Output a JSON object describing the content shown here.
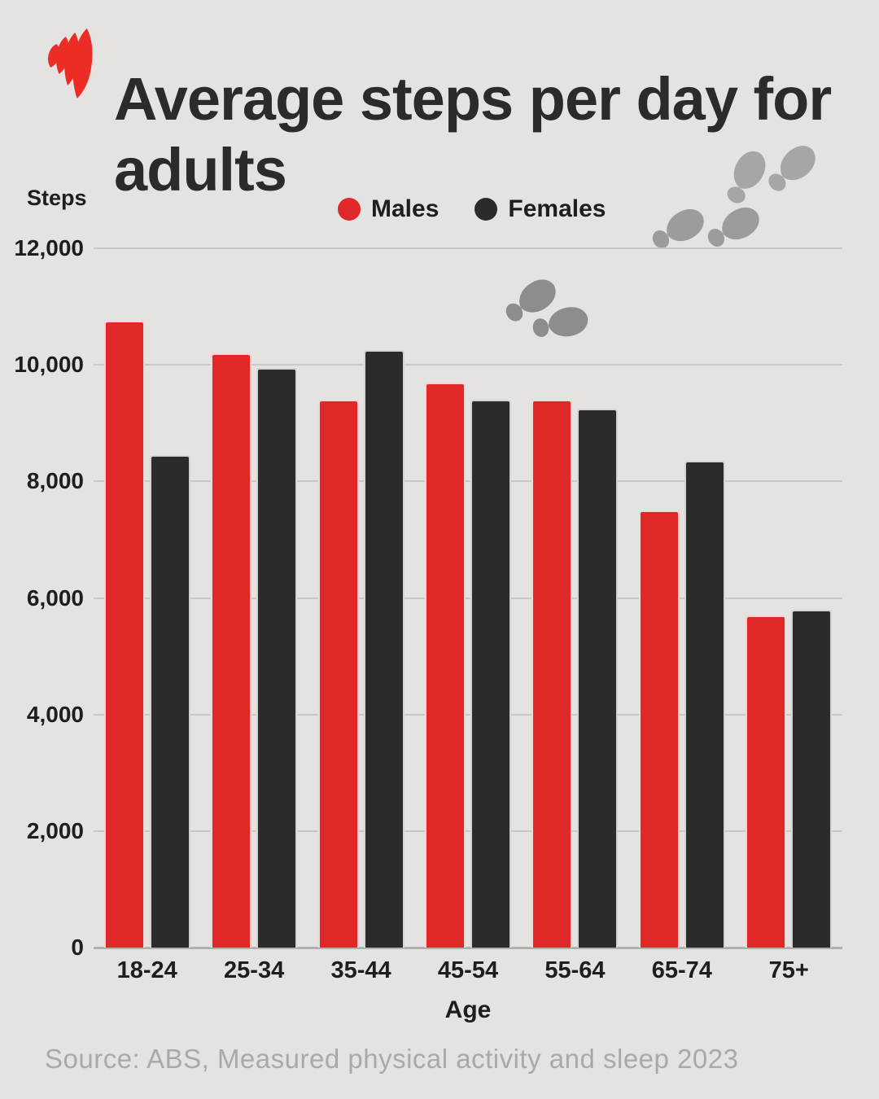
{
  "header": {
    "title": "Average steps per day for adults"
  },
  "chart_data": {
    "type": "bar",
    "title": "Average steps per day for adults",
    "categories": [
      "18-24",
      "25-34",
      "35-44",
      "45-54",
      "55-64",
      "65-74",
      "75+"
    ],
    "series": [
      {
        "name": "Males",
        "color": "#E02829",
        "values": [
          10750,
          10200,
          9400,
          9700,
          9400,
          7500,
          5700
        ]
      },
      {
        "name": "Females",
        "color": "#2B2B2B",
        "values": [
          8450,
          9950,
          10250,
          9400,
          9250,
          8350,
          5800
        ]
      }
    ],
    "xlabel": "Age",
    "ylabel": "Steps",
    "ylim": [
      0,
      12000
    ],
    "yticks": [
      0,
      2000,
      4000,
      6000,
      8000,
      10000,
      12000
    ],
    "ytick_labels": [
      "0",
      "2,000",
      "4,000",
      "6,000",
      "8,000",
      "10,000",
      "12,000"
    ],
    "grid": true,
    "legend_position": "top-center"
  },
  "footer": {
    "source": "Source: ABS, Measured physical activity and sleep 2023"
  },
  "colors": {
    "background": "#E4E3E1",
    "males_red": "#E02829",
    "females_dark": "#2B2B2B",
    "gridline": "#C9C8C5",
    "axis_line": "#B1B0AE",
    "source_text": "#A9A9A9",
    "footprints_gray": "#9B9B9B",
    "logo_red": "#EC2D26"
  }
}
